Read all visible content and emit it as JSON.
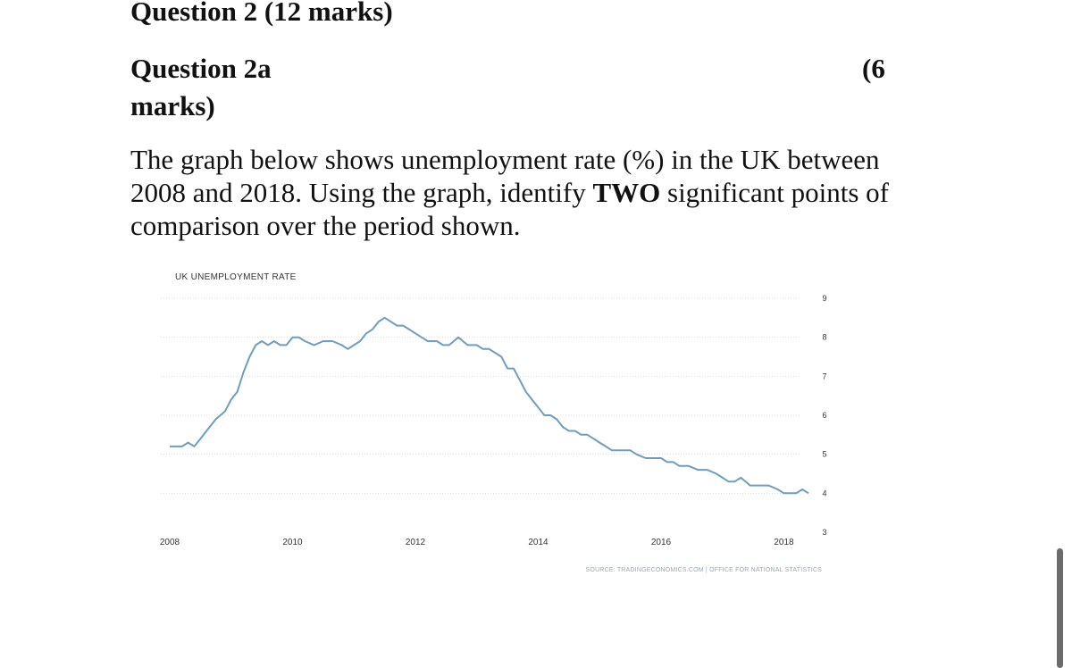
{
  "question": {
    "title": "Question 2 (12 marks)",
    "sub_label": "Question 2a",
    "marks_open": "(6",
    "marks_close": "marks)",
    "body_part1": "The graph below shows unemployment rate (%) in the UK between 2008 and 2018.  Using the graph, identify ",
    "body_bold": "TWO",
    "body_part2": " significant points of comparison over the period shown."
  },
  "chart_data": {
    "type": "line",
    "title": "UK UNEMPLOYMENT RATE",
    "source": "SOURCE: TRADINGECONOMICS.COM  |  OFFICE FOR NATIONAL STATISTICS",
    "xlabel": "",
    "ylabel": "",
    "x_ticks": [
      "2008",
      "2010",
      "2012",
      "2014",
      "2016",
      "2018"
    ],
    "y_ticks": [
      "3",
      "4",
      "5",
      "6",
      "7",
      "8",
      "9"
    ],
    "xlim": [
      2008,
      2018.4
    ],
    "ylim": [
      3,
      9
    ],
    "grid": true,
    "series": [
      {
        "color": "#6f9dbd",
        "x": [
          2008.0,
          2008.2,
          2008.3,
          2008.4,
          2008.5,
          2008.6,
          2008.75,
          2008.9,
          2009.0,
          2009.1,
          2009.2,
          2009.3,
          2009.4,
          2009.5,
          2009.6,
          2009.7,
          2009.8,
          2009.9,
          2010.0,
          2010.1,
          2010.2,
          2010.35,
          2010.5,
          2010.65,
          2010.8,
          2010.9,
          2011.0,
          2011.1,
          2011.2,
          2011.3,
          2011.4,
          2011.5,
          2011.6,
          2011.7,
          2011.8,
          2011.9,
          2012.0,
          2012.1,
          2012.2,
          2012.35,
          2012.45,
          2012.55,
          2012.7,
          2012.85,
          2013.0,
          2013.1,
          2013.2,
          2013.3,
          2013.4,
          2013.5,
          2013.6,
          2013.7,
          2013.8,
          2013.9,
          2014.0,
          2014.1,
          2014.2,
          2014.3,
          2014.4,
          2014.5,
          2014.6,
          2014.7,
          2014.8,
          2014.9,
          2015.0,
          2015.1,
          2015.2,
          2015.3,
          2015.4,
          2015.5,
          2015.6,
          2015.75,
          2015.9,
          2016.0,
          2016.1,
          2016.2,
          2016.3,
          2016.45,
          2016.6,
          2016.75,
          2016.9,
          2017.0,
          2017.1,
          2017.2,
          2017.3,
          2017.45,
          2017.6,
          2017.75,
          2017.9,
          2018.0,
          2018.1,
          2018.2,
          2018.3,
          2018.4
        ],
        "y": [
          5.2,
          5.2,
          5.3,
          5.2,
          5.4,
          5.6,
          5.9,
          6.1,
          6.4,
          6.6,
          7.1,
          7.5,
          7.8,
          7.9,
          7.8,
          7.9,
          7.8,
          7.8,
          8.0,
          8.0,
          7.9,
          7.8,
          7.9,
          7.9,
          7.8,
          7.7,
          7.8,
          7.9,
          8.1,
          8.2,
          8.4,
          8.5,
          8.4,
          8.3,
          8.3,
          8.2,
          8.1,
          8.0,
          7.9,
          7.9,
          7.8,
          7.8,
          8.0,
          7.8,
          7.8,
          7.7,
          7.7,
          7.6,
          7.5,
          7.2,
          7.2,
          6.9,
          6.6,
          6.4,
          6.2,
          6.0,
          6.0,
          5.9,
          5.7,
          5.6,
          5.6,
          5.5,
          5.5,
          5.4,
          5.3,
          5.2,
          5.1,
          5.1,
          5.1,
          5.1,
          5.0,
          4.9,
          4.9,
          4.9,
          4.8,
          4.8,
          4.7,
          4.7,
          4.6,
          4.6,
          4.5,
          4.4,
          4.3,
          4.3,
          4.4,
          4.2,
          4.2,
          4.2,
          4.1,
          4.0,
          4.0,
          4.0,
          4.1,
          4.0
        ]
      }
    ]
  }
}
